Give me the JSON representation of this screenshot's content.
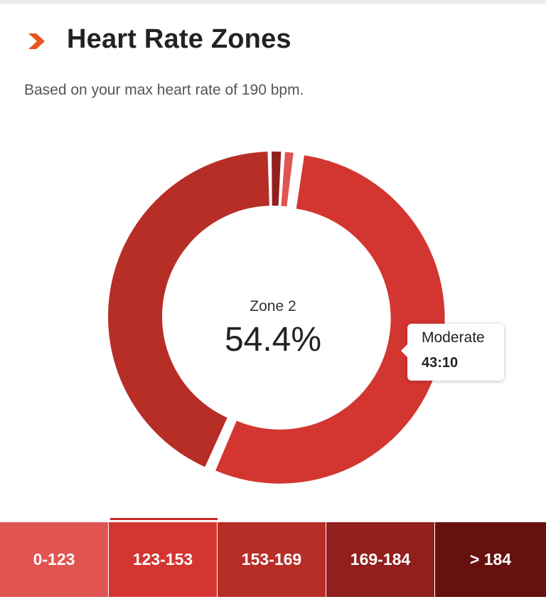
{
  "header": {
    "title": "Heart Rate Zones",
    "subtitle": "Based on your max heart rate of 190 bpm."
  },
  "icons": {
    "header_icon": "chevron-right-icon"
  },
  "colors": {
    "accent": "#e8541d",
    "zone1": "#e05452",
    "zone2": "#d33631",
    "zone3": "#b72e27",
    "zone4": "#911f1e",
    "zone5": "#66110e"
  },
  "center": {
    "zone_label": "Zone 2",
    "percent": "54.4%"
  },
  "tooltip": {
    "label": "Moderate",
    "value": "43:10"
  },
  "zones": [
    {
      "label": "0-123",
      "selected": false
    },
    {
      "label": "123-153",
      "selected": true
    },
    {
      "label": "153-169",
      "selected": false
    },
    {
      "label": "169-184",
      "selected": false
    },
    {
      "label": "> 184",
      "selected": false
    }
  ],
  "chart_data": {
    "type": "pie",
    "categories": [
      "0-123",
      "123-153",
      "153-169",
      "169-184",
      "> 184"
    ],
    "values": [
      1.2,
      54.4,
      43.1,
      1.3,
      0
    ],
    "highlighted": "123-153"
  }
}
